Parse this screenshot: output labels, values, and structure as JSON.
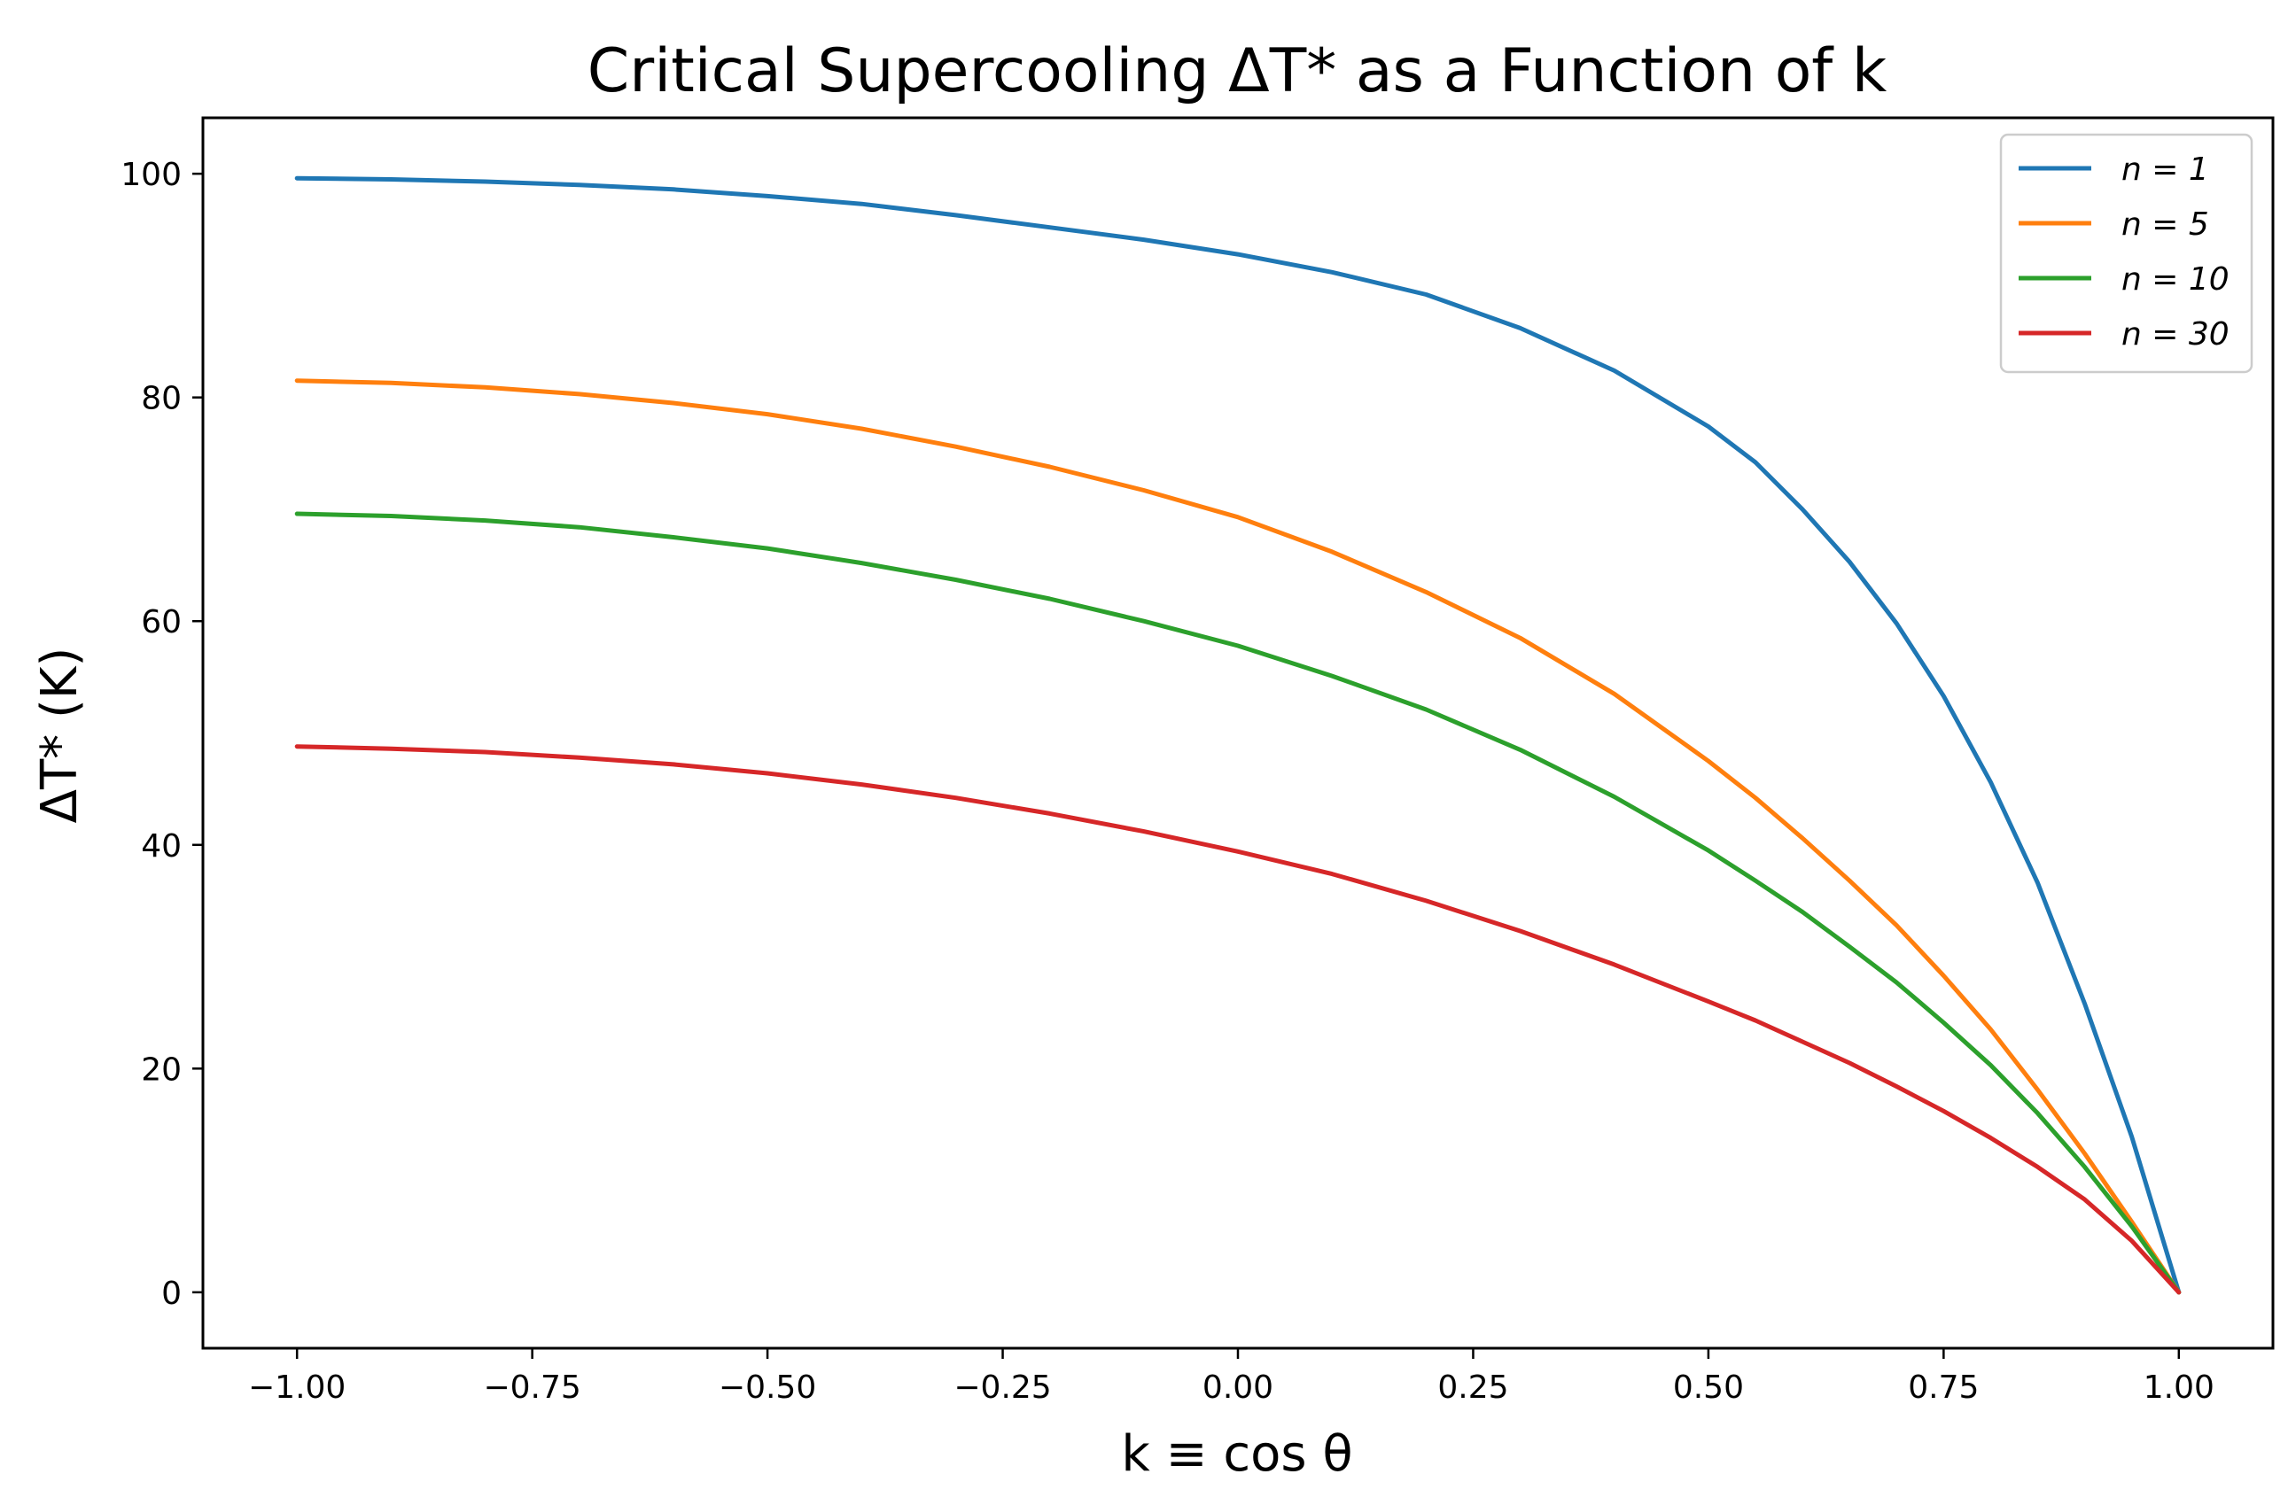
{
  "chart_data": {
    "type": "line",
    "title": "Critical Supercooling ΔT* as a Function of k",
    "xlabel": "k ≡ cos θ",
    "ylabel": "ΔT* (K)",
    "xlim": [
      -1.1,
      1.1
    ],
    "ylim": [
      -5,
      105
    ],
    "xticks": [
      -1.0,
      -0.75,
      -0.5,
      -0.25,
      0.0,
      0.25,
      0.5,
      0.75,
      1.0
    ],
    "xtick_labels": [
      "−1.00",
      "−0.75",
      "−0.50",
      "−0.25",
      "0.00",
      "0.25",
      "0.50",
      "0.75",
      "1.00"
    ],
    "yticks": [
      0,
      20,
      40,
      60,
      80,
      100
    ],
    "ytick_labels": [
      "0",
      "20",
      "40",
      "60",
      "80",
      "100"
    ],
    "grid": false,
    "legend_position": "top-right",
    "x": [
      -1.0,
      -0.9,
      -0.8,
      -0.7,
      -0.6,
      -0.5,
      -0.4,
      -0.3,
      -0.2,
      -0.1,
      0.0,
      0.1,
      0.2,
      0.3,
      0.4,
      0.5,
      0.55,
      0.6,
      0.65,
      0.7,
      0.75,
      0.8,
      0.85,
      0.9,
      0.95,
      1.0
    ],
    "series": [
      {
        "name": "n = 1",
        "color": "#1f77b4",
        "values": [
          99.6,
          99.5,
          99.3,
          99.0,
          98.6,
          98.0,
          97.3,
          96.3,
          95.2,
          94.1,
          92.8,
          91.2,
          89.2,
          86.2,
          82.4,
          77.4,
          74.2,
          70.0,
          65.3,
          59.8,
          53.3,
          45.6,
          36.6,
          25.8,
          13.9,
          0.0
        ]
      },
      {
        "name": "n = 5",
        "color": "#ff7f0e",
        "values": [
          81.5,
          81.3,
          80.9,
          80.3,
          79.5,
          78.5,
          77.2,
          75.6,
          73.8,
          71.7,
          69.3,
          66.2,
          62.6,
          58.5,
          53.5,
          47.5,
          44.2,
          40.6,
          36.8,
          32.8,
          28.3,
          23.5,
          18.1,
          12.4,
          6.3,
          0.0
        ]
      },
      {
        "name": "n = 10",
        "color": "#2ca02c",
        "values": [
          69.6,
          69.4,
          69.0,
          68.4,
          67.5,
          66.5,
          65.2,
          63.7,
          62.0,
          60.0,
          57.8,
          55.1,
          52.1,
          48.5,
          44.3,
          39.5,
          36.8,
          34.0,
          30.9,
          27.7,
          24.1,
          20.3,
          16.0,
          11.2,
          5.9,
          0.0
        ]
      },
      {
        "name": "n = 30",
        "color": "#d62728",
        "values": [
          48.8,
          48.6,
          48.3,
          47.8,
          47.2,
          46.4,
          45.4,
          44.2,
          42.8,
          41.2,
          39.4,
          37.4,
          35.0,
          32.3,
          29.3,
          26.0,
          24.3,
          22.4,
          20.5,
          18.4,
          16.2,
          13.8,
          11.2,
          8.3,
          4.6,
          0.0
        ]
      }
    ]
  }
}
